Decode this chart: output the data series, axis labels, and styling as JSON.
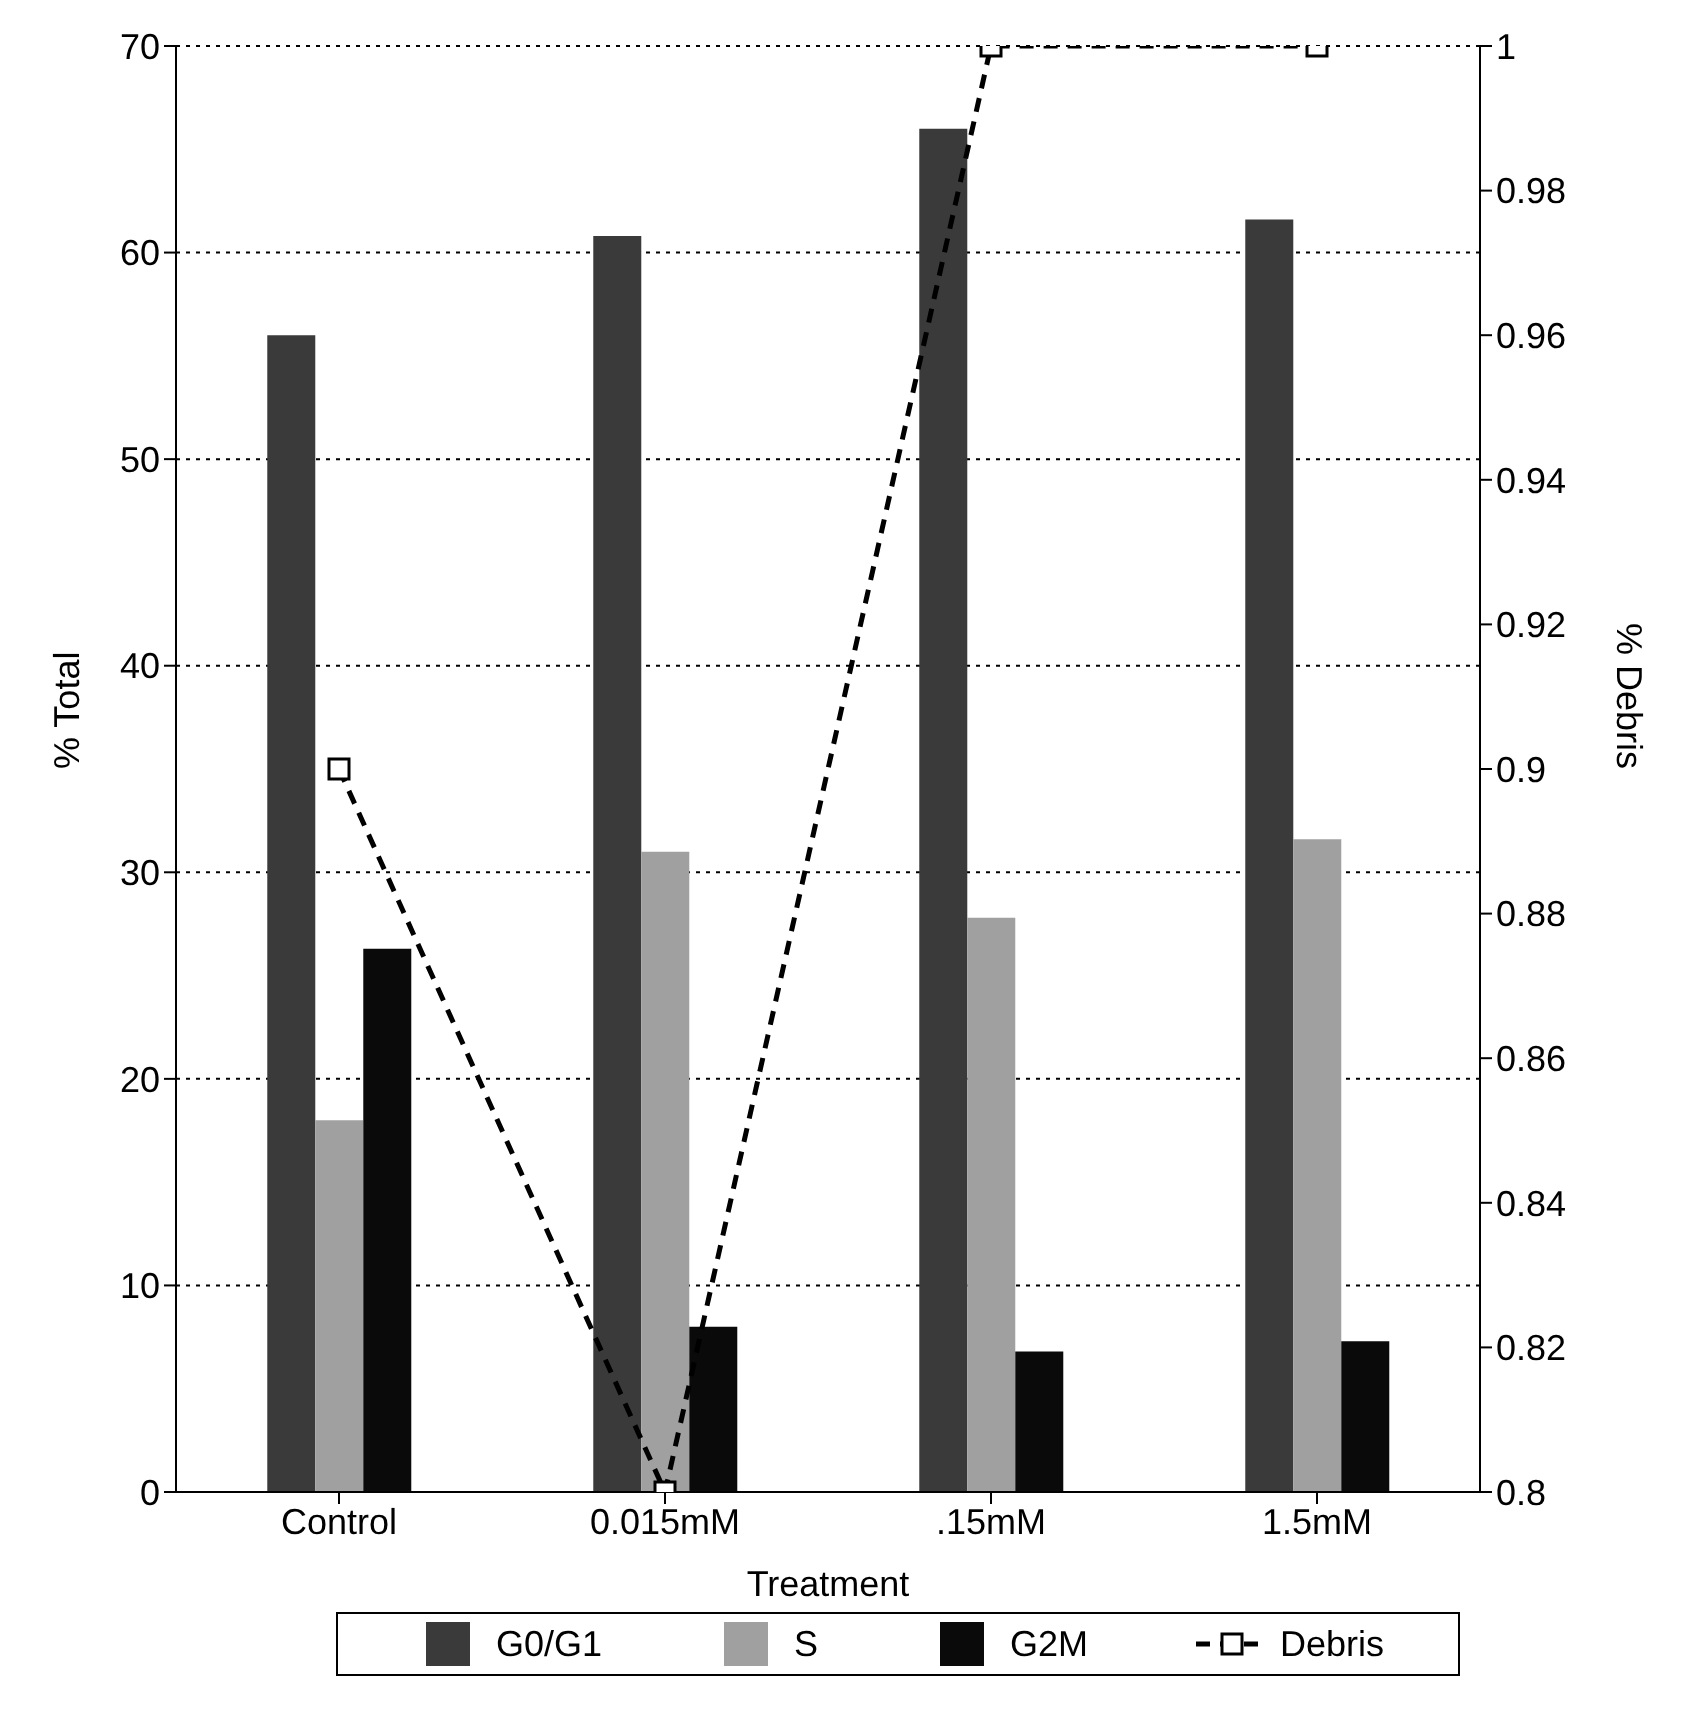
{
  "chart_data": {
    "type": "bar",
    "xlabel": "Treatment",
    "ylabel": "% Total",
    "y2label": "% Debris",
    "categories": [
      "Control",
      "0.015mM",
      ".15mM",
      "1.5mM"
    ],
    "series": [
      {
        "name": "G0/G1",
        "color": "#3a3a3a",
        "values": [
          56,
          60.8,
          66,
          61.6
        ]
      },
      {
        "name": "S",
        "color": "#a0a0a0",
        "values": [
          18,
          31,
          27.8,
          31.6
        ]
      },
      {
        "name": "G2M",
        "color": "#0a0a0a",
        "values": [
          26.3,
          8,
          6.8,
          7.3
        ]
      },
      {
        "name": "Debris",
        "type": "line",
        "axis": "y2",
        "color": "#000000",
        "values": [
          0.9,
          0.8,
          1,
          1
        ],
        "marker": "square",
        "line_style": "dashed"
      }
    ],
    "ylim": [
      0,
      70
    ],
    "yticks": [
      0,
      10,
      20,
      30,
      40,
      50,
      60,
      70
    ],
    "y2lim": [
      0.8,
      1
    ],
    "y2ticks": [
      0.8,
      0.82,
      0.84,
      0.86,
      0.88,
      0.9,
      0.92,
      0.94,
      0.96,
      0.98,
      1
    ],
    "grid": "y",
    "legend": "bottom"
  }
}
